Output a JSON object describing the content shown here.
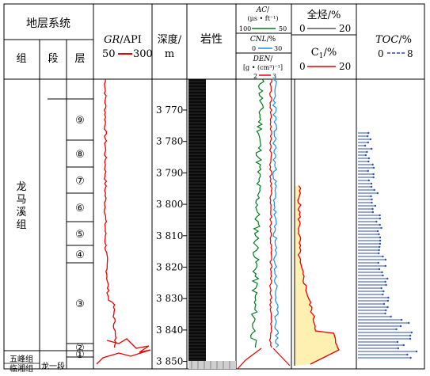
{
  "header": {
    "stratum_system": "地层系统",
    "col_group": "组",
    "col_section": "段",
    "col_layer": "层",
    "gr": {
      "name": "GR",
      "unit": "/API",
      "min": "50",
      "max": "300",
      "color": "#e60000"
    },
    "depth": {
      "line1": "深度/",
      "line2": "m"
    },
    "lithology": "岩性",
    "ac": {
      "name": "AC",
      "slash": "/",
      "unit": "(μs • ft⁻¹)",
      "min": "100",
      "max": "50",
      "color": "#007a1f"
    },
    "cnl": {
      "name": "CNL",
      "unit": "/%",
      "min": "0",
      "max": "30",
      "color": "#1e90d6"
    },
    "den": {
      "name": "DEN",
      "slash": "/",
      "unit": "[g • (cm³)⁻¹]",
      "min": "2",
      "max": "3",
      "color": "#e60000"
    },
    "total_gas": {
      "label": "全烃/%",
      "min": "0",
      "max": "20",
      "color": "#000000"
    },
    "c1": {
      "label": "C",
      "sub": "1",
      "unit": "/%",
      "min": "0",
      "max": "20",
      "color": "#e60000"
    },
    "toc": {
      "name": "TOC",
      "unit": "/%",
      "min": "0",
      "max": "8",
      "color": "#2a4fb0"
    }
  },
  "strata": {
    "formation_main": "龙马溪组",
    "formation_wufeng": "五峰组",
    "formation_linxiang": "临湘组",
    "section_1": "龙一段",
    "layers": [
      "⑨",
      "⑧",
      "⑦",
      "⑥",
      "⑤",
      "④",
      "③",
      "②",
      "①"
    ]
  },
  "depth_ticks": [
    "3 770",
    "3 780",
    "3 790",
    "3 800",
    "3 810",
    "3 820",
    "3 830",
    "3 840",
    "3 850"
  ],
  "colors": {
    "c1_fill": "#fdf0b0",
    "frame": "#000000"
  }
}
